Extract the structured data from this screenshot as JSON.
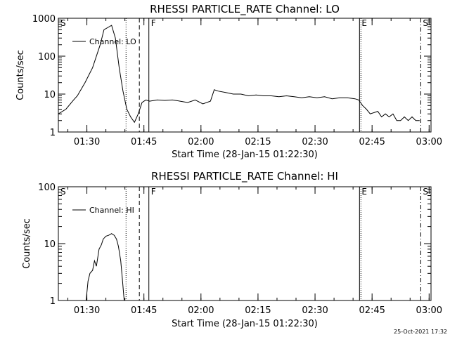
{
  "footer": {
    "timestamp": "25-Oct-2021 17:32"
  },
  "colors": {
    "background": "#ffffff",
    "foreground": "#000000"
  },
  "chart_data": [
    {
      "type": "line",
      "title": "RHESSI PARTICLE_RATE Channel: LO",
      "xlabel": "Start Time (28-Jan-15 01:22:30)",
      "ylabel": "Counts/sec",
      "yscale": "log",
      "ylim": [
        1,
        1000
      ],
      "xlim_minutes_after_01_22_30": [
        0,
        98
      ],
      "y_ticks": [
        1,
        10,
        100,
        1000
      ],
      "y_tick_labels": [
        "1",
        "10",
        "100",
        "1000"
      ],
      "x_tick_minutes": [
        7.5,
        22.5,
        37.5,
        52.5,
        67.5,
        82.5,
        97.5
      ],
      "x_tick_labels": [
        "01:30",
        "01:45",
        "02:00",
        "02:15",
        "02:30",
        "02:45",
        "03:00"
      ],
      "legend": {
        "entries": [
          "Channel: LO"
        ],
        "placement": "top-left"
      },
      "grid": false,
      "markers": [
        {
          "label": "S",
          "x": 0.0,
          "style": "dotted"
        },
        {
          "label": "",
          "x": 17.8,
          "style": "dotted"
        },
        {
          "label": "",
          "x": 21.3,
          "style": "dashed"
        },
        {
          "label": "F",
          "x": 23.8,
          "style": "solid"
        },
        {
          "label": "E",
          "x": 79.2,
          "style": "solid-dotted"
        },
        {
          "label": "S",
          "x": 95.3,
          "style": "dash-dot"
        }
      ],
      "series": [
        {
          "x": [
            0,
            2,
            4,
            5,
            7,
            9,
            11,
            12,
            14,
            15,
            16,
            17,
            18,
            19,
            20,
            21,
            22,
            23,
            24,
            26,
            28,
            30,
            32,
            34,
            36,
            38,
            40,
            41,
            42,
            44,
            46,
            48,
            50,
            52,
            54,
            56,
            58,
            60,
            62,
            64,
            66,
            68,
            70,
            72,
            74,
            76,
            78,
            79,
            80,
            81,
            82,
            84,
            85,
            86,
            87,
            88,
            89,
            90,
            91,
            92,
            93,
            94,
            95
          ],
          "y": [
            3,
            4,
            7,
            9,
            20,
            50,
            200,
            500,
            650,
            300,
            50,
            12,
            4,
            2.5,
            1.8,
            3,
            6,
            7,
            6.5,
            7,
            6.8,
            7,
            6.5,
            6,
            7,
            5.5,
            6.5,
            13,
            12,
            11,
            10,
            10,
            9,
            9.5,
            9,
            9,
            8.5,
            9,
            8.5,
            8,
            8.5,
            8,
            8.5,
            7.5,
            8,
            8,
            7.5,
            7,
            5,
            4,
            3,
            3.5,
            2.5,
            3,
            2.5,
            3,
            2,
            2,
            2.5,
            2,
            2.5,
            2,
            2
          ]
        }
      ]
    },
    {
      "type": "line",
      "title": "RHESSI PARTICLE_RATE Channel: HI",
      "xlabel": "Start Time (28-Jan-15 01:22:30)",
      "ylabel": "Counts/sec",
      "yscale": "log",
      "ylim": [
        1,
        100
      ],
      "xlim_minutes_after_01_22_30": [
        0,
        98
      ],
      "y_ticks": [
        1,
        10,
        100
      ],
      "y_tick_labels": [
        "1",
        "10",
        "100"
      ],
      "x_tick_minutes": [
        7.5,
        22.5,
        37.5,
        52.5,
        67.5,
        82.5,
        97.5
      ],
      "x_tick_labels": [
        "01:30",
        "01:45",
        "02:00",
        "02:15",
        "02:30",
        "02:45",
        "03:00"
      ],
      "legend": {
        "entries": [
          "Channel: HI"
        ],
        "placement": "top-left"
      },
      "grid": false,
      "markers": [
        {
          "label": "S",
          "x": 0.0,
          "style": "dotted"
        },
        {
          "label": "",
          "x": 17.8,
          "style": "dotted"
        },
        {
          "label": "",
          "x": 21.3,
          "style": "dashed"
        },
        {
          "label": "F",
          "x": 23.8,
          "style": "solid"
        },
        {
          "label": "E",
          "x": 79.2,
          "style": "solid-dotted"
        },
        {
          "label": "S",
          "x": 95.3,
          "style": "dash-dot"
        }
      ],
      "series": [
        {
          "x": [
            7.3,
            7.8,
            8.3,
            9.0,
            9.5,
            10,
            10.7,
            11.3,
            11.8,
            12.5,
            13.2,
            14,
            14.7,
            15.3,
            15.8,
            16.4,
            16.8,
            17.3
          ],
          "y": [
            1,
            2.2,
            3,
            3.4,
            5,
            4,
            8,
            9.5,
            12,
            13.5,
            14,
            15,
            14,
            12,
            9,
            5,
            2.5,
            1
          ]
        }
      ]
    }
  ]
}
